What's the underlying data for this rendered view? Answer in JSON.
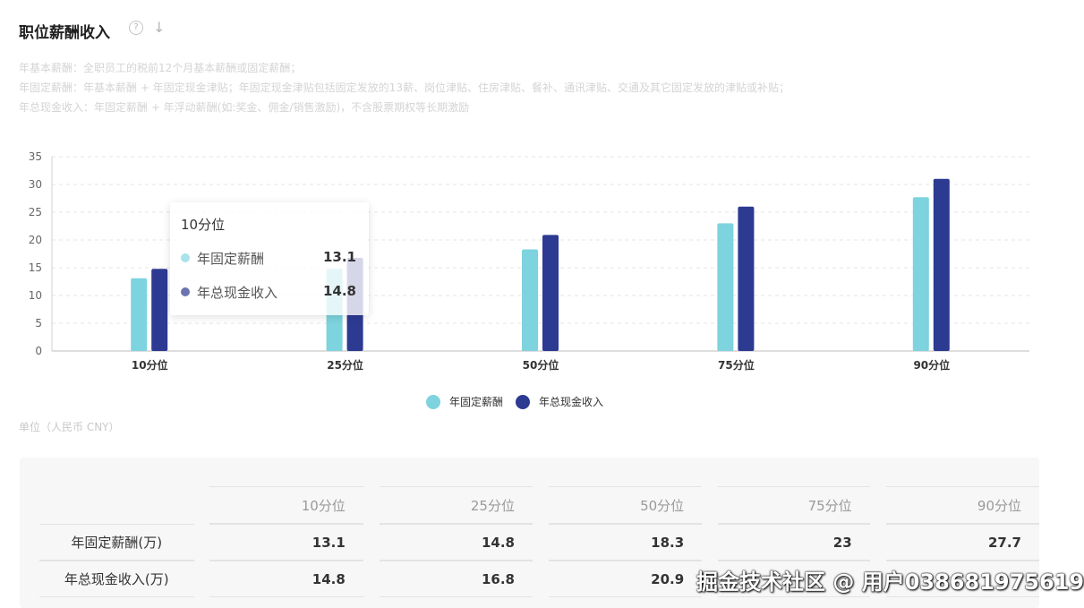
{
  "header": {
    "title": "职位薪酬收入",
    "help_glyph": "?",
    "download_glyph": "↓"
  },
  "notes": [
    "年基本薪酬：全职员工的税前12个月基本薪酬或固定薪酬；",
    "年固定薪酬：年基本薪酬 + 年固定现金津贴；年固定现金津贴包括固定发放的13薪、岗位津贴、住房津贴、餐补、通讯津贴、交通及其它固定发放的津贴或补贴；",
    "年总现金收入：年固定薪酬 + 年浮动薪酬(如:奖金、佣金/销售激励)，不含股票期权等长期激励"
  ],
  "unit_label": "单位（人民币 CNY）",
  "colors": {
    "fixed": "#7dd3de",
    "total": "#2d3a92"
  },
  "chart_data": {
    "type": "bar",
    "categories": [
      "10分位",
      "25分位",
      "50分位",
      "75分位",
      "90分位"
    ],
    "series": [
      {
        "name": "年固定薪酬",
        "values": [
          13.1,
          14.8,
          18.3,
          23,
          27.7
        ]
      },
      {
        "name": "年总现金收入",
        "values": [
          14.8,
          16.8,
          20.9,
          26,
          31
        ]
      }
    ],
    "yticks": [
      0,
      5,
      10,
      15,
      20,
      25,
      30,
      35
    ],
    "ylim": [
      0,
      35
    ],
    "grid": true,
    "legend_position": "bottom-center"
  },
  "tooltip": {
    "title": "10分位",
    "rows": [
      {
        "label": "年固定薪酬",
        "value": "13.1"
      },
      {
        "label": "年总现金收入",
        "value": "14.8"
      }
    ]
  },
  "table": {
    "headers": [
      "10分位",
      "25分位",
      "50分位",
      "75分位",
      "90分位"
    ],
    "rows": [
      {
        "label": "年固定薪酬(万)",
        "values": [
          "13.1",
          "14.8",
          "18.3",
          "23",
          "27.7"
        ]
      },
      {
        "label": "年总现金收入(万)",
        "values": [
          "14.8",
          "16.8",
          "20.9",
          "",
          ""
        ]
      }
    ]
  },
  "watermark": "掘金技术社区 @ 用户038681975619"
}
